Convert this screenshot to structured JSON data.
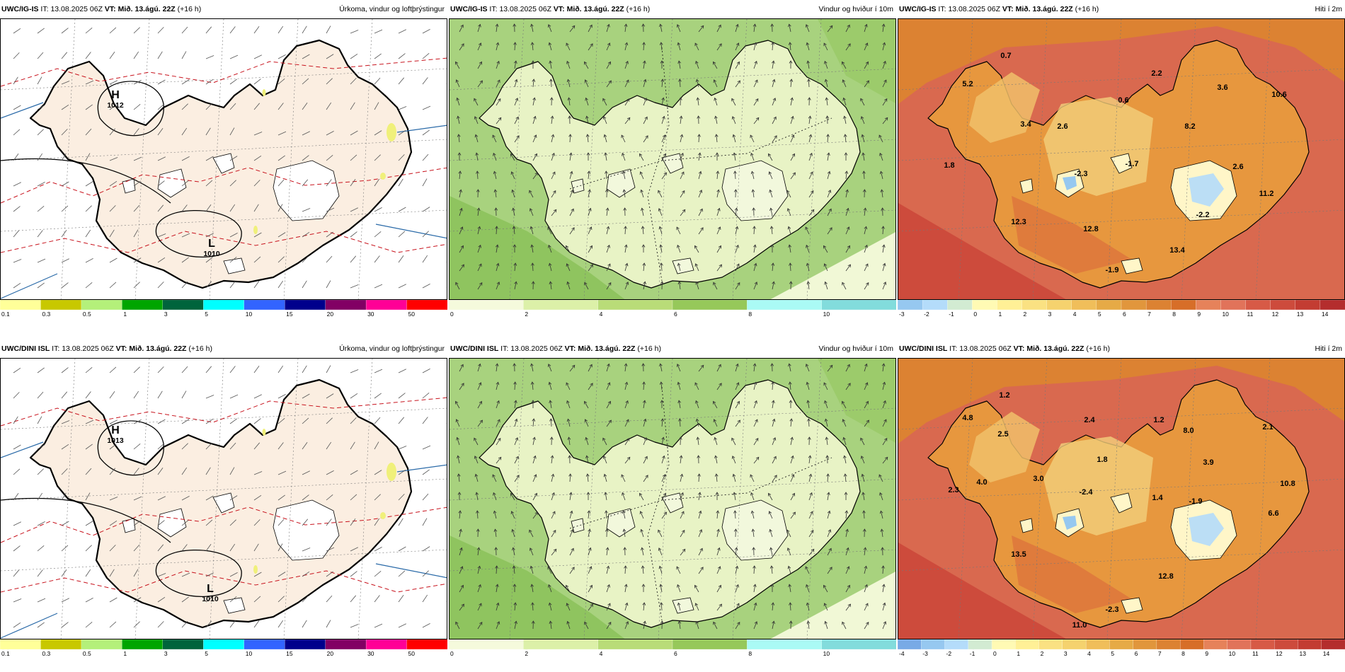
{
  "time": {
    "it_label": "IT:",
    "it_value": "13.08.2025 06Z",
    "vt_label": "VT:",
    "vt_value": "Mið. 13.ágú. 22Z",
    "lead": "(+16 h)"
  },
  "rows": [
    {
      "model": "UWC/IG-IS",
      "precip": {
        "title": "Úrkoma, vindur og loftþrýstingur",
        "high": {
          "letter": "H",
          "value": "1012"
        },
        "low": {
          "letter": "L",
          "value": "1010"
        }
      },
      "wind": {
        "title": "Vindur og hviður í 10m"
      },
      "temp": {
        "title": "Hiti í 2m",
        "labels": [
          "0.7",
          "5.2",
          "2.2",
          "0.6",
          "3.6",
          "10.6",
          "3.4",
          "2.6",
          "8.2",
          "-1.7",
          "1.8",
          "-2.3",
          "2.6",
          "11.2",
          "12.3",
          "12.8",
          "-2.2",
          "13.4",
          "-1.9"
        ]
      }
    },
    {
      "model": "UWC/DINI ISL",
      "precip": {
        "title": "Úrkoma, vindur og loftþrýstingur",
        "high": {
          "letter": "H",
          "value": "1013"
        },
        "low": {
          "letter": "L",
          "value": "1010"
        }
      },
      "wind": {
        "title": "Vindur og hviður í 10m"
      },
      "temp": {
        "title": "Hiti í 2m",
        "labels": [
          "1.2",
          "4.8",
          "2.5",
          "2.4",
          "1.2",
          "8.0",
          "2.1",
          "1.8",
          "3.9",
          "4.0",
          "3.0",
          "2.3",
          "-2.4",
          "1.4",
          "-1.9",
          "10.8",
          "6.6",
          "13.5",
          "12.8",
          "-2.3",
          "11.0"
        ]
      }
    }
  ],
  "legends": {
    "precip": {
      "ticks": [
        "0.1",
        "0.3",
        "0.5",
        "1",
        "3",
        "5",
        "10",
        "15",
        "20",
        "30",
        "50"
      ],
      "colors": [
        "#ffff99",
        "#c8c800",
        "#b4f07a",
        "#00a500",
        "#00643c",
        "#00ffff",
        "#3264ff",
        "#00008c",
        "#820064",
        "#ff0096",
        "#ff0000"
      ]
    },
    "wind": {
      "ticks": [
        "0",
        "2",
        "4",
        "6",
        "8",
        "10"
      ],
      "colors": [
        "#f5fadc",
        "#dcf0a8",
        "#b9dc78",
        "#96c85a",
        "#aafaf5",
        "#82dcdc"
      ]
    },
    "temp_top": {
      "ticks": [
        "-3",
        "-2",
        "-1",
        "0",
        "1",
        "2",
        "3",
        "4",
        "5",
        "6",
        "7",
        "8",
        "9",
        "10",
        "11",
        "12",
        "13",
        "14"
      ],
      "colors": [
        "#96c8f0",
        "#b4dcfa",
        "#d2ebd2",
        "#fffab4",
        "#fff096",
        "#fae182",
        "#f5d26e",
        "#f0be5a",
        "#e6aa46",
        "#e1963c",
        "#dc8232",
        "#d76e28",
        "#e6825a",
        "#e1735a",
        "#d75a46",
        "#cd4b3c",
        "#c33c32",
        "#b42d2d"
      ]
    },
    "temp_bottom": {
      "ticks": [
        "-4",
        "-3",
        "-2",
        "-1",
        "0",
        "1",
        "2",
        "3",
        "4",
        "5",
        "6",
        "7",
        "8",
        "9",
        "10",
        "11",
        "12",
        "13",
        "14"
      ],
      "colors": [
        "#78aae6",
        "#96c8f0",
        "#b4dcfa",
        "#d2ebd2",
        "#fffab4",
        "#fff096",
        "#fae182",
        "#f5d26e",
        "#f0be5a",
        "#e6aa46",
        "#e1963c",
        "#dc8232",
        "#d76e28",
        "#e6825a",
        "#e1735a",
        "#d75a46",
        "#cd4b3c",
        "#c33c32",
        "#b42d2d"
      ]
    }
  }
}
